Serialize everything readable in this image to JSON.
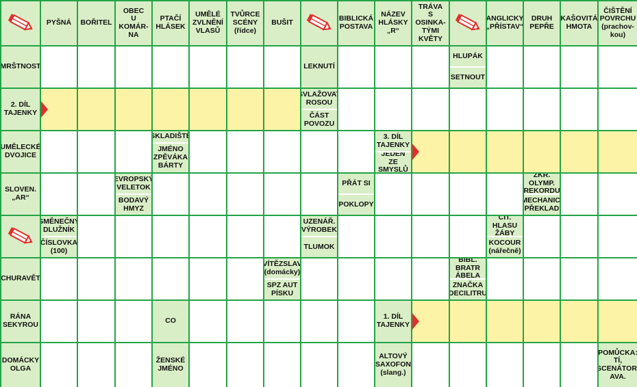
{
  "colors": {
    "grid_line": "#23a347",
    "clue_bg": "#d9eec6",
    "answer_bg": "#fdf3a6",
    "arrow": "#e0302b"
  },
  "header_clues": [
    "PYŠNÁ",
    "BOŘITEL",
    "OBEC\nU KOMÁR-\nNA",
    "PTAČÍ\nHLÁSEK",
    "UMĚLÉ\nZVLNĚNÍ\nVLASŮ",
    "TVŮRCE\nSCÉNY\n(řídce)",
    "BUŠIT",
    "BIBLICKÁ\nPOSTAVA",
    "NÁZEV\nHLÁSKY\n„R“",
    "TRÁVA\nS OSINKA-\nTÝMI\nKVĚTY",
    "ANGLICKY\n„PŘÍSTAV“",
    "DRUH\nPEPŘE",
    "KAŠOVITÁ\nHMOTA",
    "ČIŠTĚNÍ\nPOVRCHU\n(prachov-\nkou)"
  ],
  "row_clues": [
    "MRŠTNOST",
    "2. DÍL\nTAJENKY",
    "UMĚLECKÉ\nDVOJICE",
    "SLOVEN.\n„AR“",
    "",
    "CHURAVĚT",
    "RÁNA\nSEKYROU",
    "DOMÁCKY\nOLGA"
  ],
  "inner_clues": {
    "leknuti": "LEKNUTÍ",
    "hlupak": "HLUPÁK",
    "setnout": "SETNOUT",
    "svlazovat": "SVLAŽOVAT\nROSOU",
    "cast_povozu": "ČÁST\nPOVOZU",
    "skladiste": "SKLADIŠTĚ",
    "jmeno_zpevaka": "JMÉNO\nZPĚVÁKA\nBÁRTY",
    "tajenka3": "3. DÍL\nTAJENKY",
    "jeden_ze_smyslu": "JEDEN\nZE SMYSLŮ",
    "evropsky_veletok": "EVROPSKÝ\nVELETOK",
    "bodavy_hmyz": "BODAVÝ\nHMYZ",
    "prat_si": "PŘÁT SI",
    "poklopy": "POKLOPY",
    "zkr_olymp": "ZKR. OLYMP.\nREKORDU",
    "mechanic": "MECHANIC.\nPŘEKLAD",
    "smenecny": "SMĚNEČNÝ\nDLUŽNÍK",
    "cislovka": "ČÍSLOVKA\n(100)",
    "uzenar": "UZENÁŘ.\nVÝROBEK",
    "tlumok": "TLUMOK",
    "cit_hlasu": "CIT. HLASU\nŽÁBY",
    "kocour": "KOCOUR\n(nářečně)",
    "vitezslav": "VÍTĚZSLAV\n(domácky)",
    "spz": "SPZ AUT\nPÍSKU",
    "bibl_bratr": "BIBL. BRATR\nÁBELA",
    "znacka": "ZNAČKA\nDECILITRU",
    "co": "CO",
    "tajenka1": "1. DÍL\nTAJENKY",
    "zenske_jmeno": "ŽENSKÉ\nJMÉNO",
    "altovy": "ALTOVÝ\nSAXOFON\n(slang.)",
    "pomucka": "POMŮCKA:\nTÍ,\nSCENÁTOR,\nAVA."
  }
}
